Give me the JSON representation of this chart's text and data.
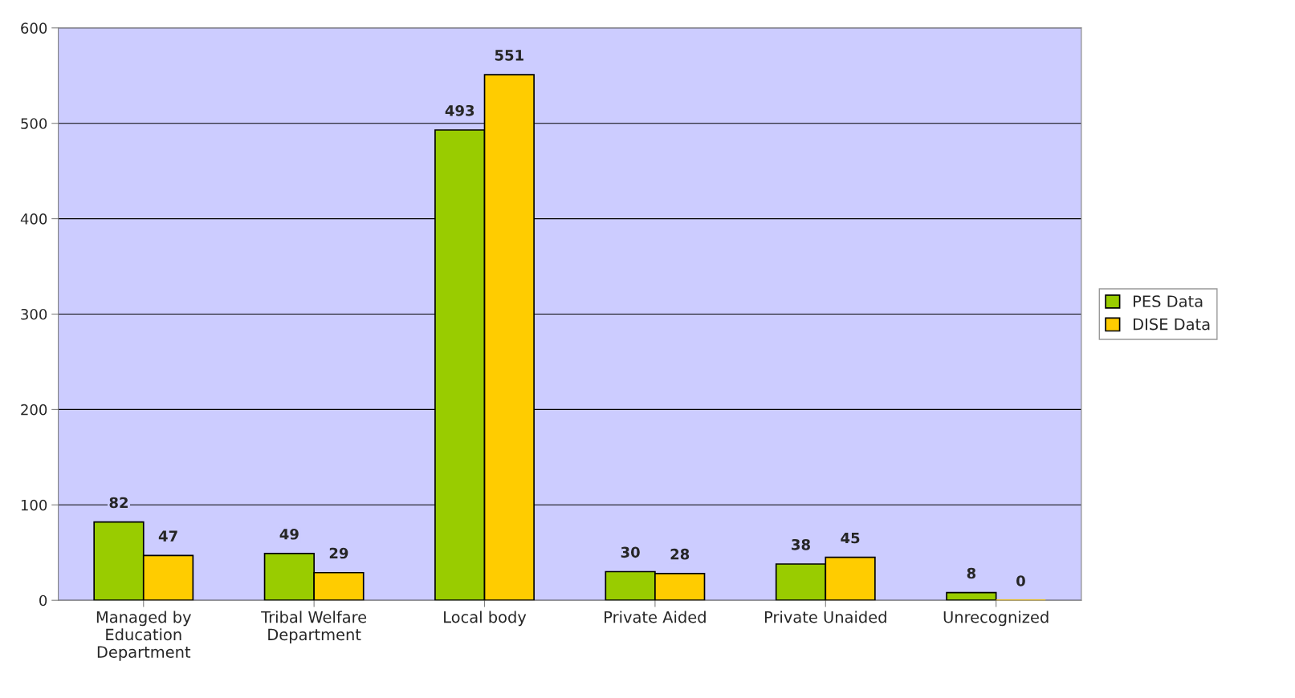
{
  "chart_data": {
    "type": "bar",
    "categories": [
      "Managed by\nEducation\nDepartment",
      "Tribal Welfare\nDepartment",
      "Local body",
      "Private Aided",
      "Private Unaided",
      "Unrecognized"
    ],
    "series": [
      {
        "name": "PES Data",
        "color": "#99cc00",
        "values": [
          82,
          49,
          493,
          30,
          38,
          8
        ]
      },
      {
        "name": "DISE Data",
        "color": "#ffcc00",
        "values": [
          47,
          29,
          551,
          28,
          45,
          0
        ]
      }
    ],
    "ylim": [
      0,
      600
    ],
    "yticks": [
      0,
      100,
      200,
      300,
      400,
      500,
      600
    ],
    "grid": "y",
    "legend": "right",
    "data_labels": true
  }
}
